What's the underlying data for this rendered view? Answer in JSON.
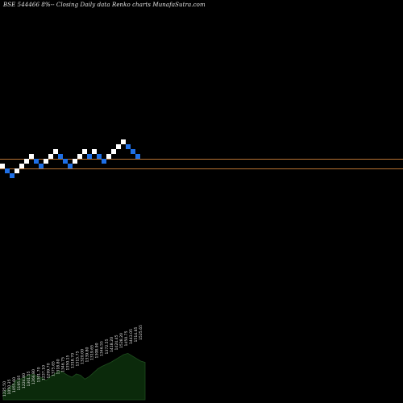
{
  "title": "BSE 544466  8%-- Closing Daily data  Renko  charts MunafaSutra.com",
  "colors": {
    "background": "#000000",
    "up_brick": "#ffffff",
    "down_brick": "#1e6fe6",
    "reference_line": "#b87333",
    "volume_fill": "#0b2a0b",
    "volume_line": "#1f4d1f"
  },
  "chart_data": {
    "type": "renko",
    "reference_lines": [
      197,
      209
    ],
    "bricks": [
      {
        "dir": "up",
        "level": 206
      },
      {
        "dir": "down",
        "level": 212
      },
      {
        "dir": "down",
        "level": 218
      },
      {
        "dir": "up",
        "level": 212
      },
      {
        "dir": "up",
        "level": 206
      },
      {
        "dir": "up",
        "level": 200
      },
      {
        "dir": "up",
        "level": 194
      },
      {
        "dir": "down",
        "level": 200
      },
      {
        "dir": "down",
        "level": 206
      },
      {
        "dir": "up",
        "level": 200
      },
      {
        "dir": "up",
        "level": 194
      },
      {
        "dir": "up",
        "level": 188
      },
      {
        "dir": "down",
        "level": 194
      },
      {
        "dir": "down",
        "level": 200
      },
      {
        "dir": "down",
        "level": 206
      },
      {
        "dir": "up",
        "level": 200
      },
      {
        "dir": "up",
        "level": 194
      },
      {
        "dir": "up",
        "level": 188
      },
      {
        "dir": "down",
        "level": 194
      },
      {
        "dir": "up",
        "level": 188
      },
      {
        "dir": "down",
        "level": 194
      },
      {
        "dir": "down",
        "level": 200
      },
      {
        "dir": "up",
        "level": 194
      },
      {
        "dir": "up",
        "level": 188
      },
      {
        "dir": "up",
        "level": 182
      },
      {
        "dir": "up",
        "level": 176
      },
      {
        "dir": "down",
        "level": 182
      },
      {
        "dir": "down",
        "level": 188
      },
      {
        "dir": "down",
        "level": 194
      }
    ],
    "volume_series": [
      0.12,
      0.16,
      0.22,
      0.3,
      0.32,
      0.35,
      0.38,
      0.4,
      0.36,
      0.34,
      0.3,
      0.36,
      0.4,
      0.45,
      0.42,
      0.38,
      0.35,
      0.4,
      0.38,
      0.32,
      0.36,
      0.42,
      0.48,
      0.52,
      0.55,
      0.58,
      0.62,
      0.66,
      0.7,
      0.72,
      0.68,
      0.64,
      0.6,
      0.58
    ],
    "volume_labels": [
      "1225.50",
      "1050.35",
      "1055.60",
      "1195.05",
      "1224.80",
      "1301.55",
      "1266.80",
      "1301.70",
      "1237.10",
      "1299.70",
      "1375.65",
      "1318.80",
      "1346.75",
      "1350.15",
      "1318.70",
      "1315.75",
      "1320.00",
      "1339.80",
      "1319.65",
      "1308.90",
      "1346.55",
      "1372.55",
      "1418.20",
      "1424.45",
      "1528.20",
      "1450.75",
      "1443.05",
      "1514.65",
      "1525.65"
    ]
  }
}
